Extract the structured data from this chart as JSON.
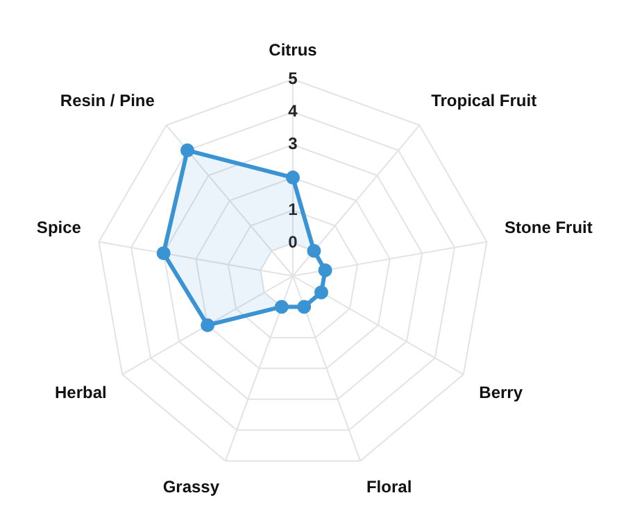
{
  "chart_data": {
    "type": "radar",
    "categories": [
      "Citrus",
      "Tropical Fruit",
      "Stone Fruit",
      "Berry",
      "Floral",
      "Grassy",
      "Herbal",
      "Spice",
      "Resin / Pine"
    ],
    "series": [
      {
        "color": "#3a93d3",
        "values": [
          2,
          0,
          0,
          0,
          0,
          0,
          2,
          3,
          4
        ]
      }
    ],
    "ylim": [
      -1,
      5
    ],
    "yticks": [
      0,
      1,
      2,
      3,
      4,
      5
    ],
    "grid": true,
    "legend": false,
    "marker": "circle"
  }
}
